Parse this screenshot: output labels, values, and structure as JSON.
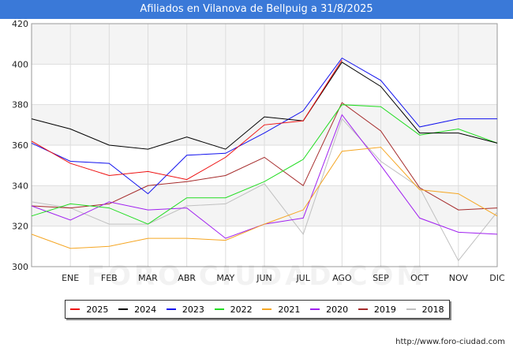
{
  "header": {
    "title": "Afiliados en Vilanova de Bellpuig a 31/8/2025"
  },
  "footer": {
    "source": "http://www.foro-ciudad.com",
    "watermark": "FORO-CIUDAD.COM"
  },
  "chart_data": {
    "type": "line",
    "title": "Afiliados en Vilanova de Bellpuig a 31/8/2025",
    "xlabel": "",
    "ylabel": "",
    "categories": [
      "",
      "ENE",
      "FEB",
      "MAR",
      "ABR",
      "MAY",
      "JUN",
      "JUL",
      "AGO",
      "SEP",
      "OCT",
      "NOV",
      "DIC"
    ],
    "ylim": [
      300,
      420
    ],
    "yticks": [
      300,
      320,
      340,
      360,
      380,
      400,
      420
    ],
    "grid": true,
    "legend_position": "bottom",
    "series": [
      {
        "name": "2025",
        "color": "#ee1111",
        "values": [
          362,
          351,
          345,
          347,
          343,
          354,
          370,
          372,
          402,
          null,
          null,
          null,
          null
        ]
      },
      {
        "name": "2024",
        "color": "#000000",
        "values": [
          373,
          368,
          360,
          358,
          364,
          358,
          374,
          372,
          401,
          389,
          366,
          366,
          361
        ]
      },
      {
        "name": "2023",
        "color": "#1111ee",
        "values": [
          361,
          352,
          351,
          336,
          355,
          356,
          366,
          377,
          403,
          392,
          369,
          373,
          373
        ]
      },
      {
        "name": "2022",
        "color": "#22dd22",
        "values": [
          325,
          331,
          329,
          321,
          334,
          334,
          342,
          353,
          380,
          379,
          365,
          368,
          361
        ]
      },
      {
        "name": "2021",
        "color": "#f5a623",
        "values": [
          316,
          309,
          310,
          314,
          314,
          313,
          321,
          328,
          357,
          359,
          338,
          336,
          325
        ]
      },
      {
        "name": "2020",
        "color": "#a020f0",
        "values": [
          330,
          323,
          332,
          328,
          329,
          314,
          321,
          324,
          375,
          350,
          324,
          317,
          316
        ]
      },
      {
        "name": "2019",
        "color": "#a52a2a",
        "values": [
          330,
          329,
          331,
          340,
          342,
          345,
          354,
          340,
          381,
          367,
          339,
          328,
          329
        ]
      },
      {
        "name": "2018",
        "color": "#c0c0c0",
        "values": [
          332,
          329,
          321,
          321,
          330,
          331,
          341,
          316,
          373,
          352,
          339,
          303,
          327
        ]
      }
    ]
  }
}
